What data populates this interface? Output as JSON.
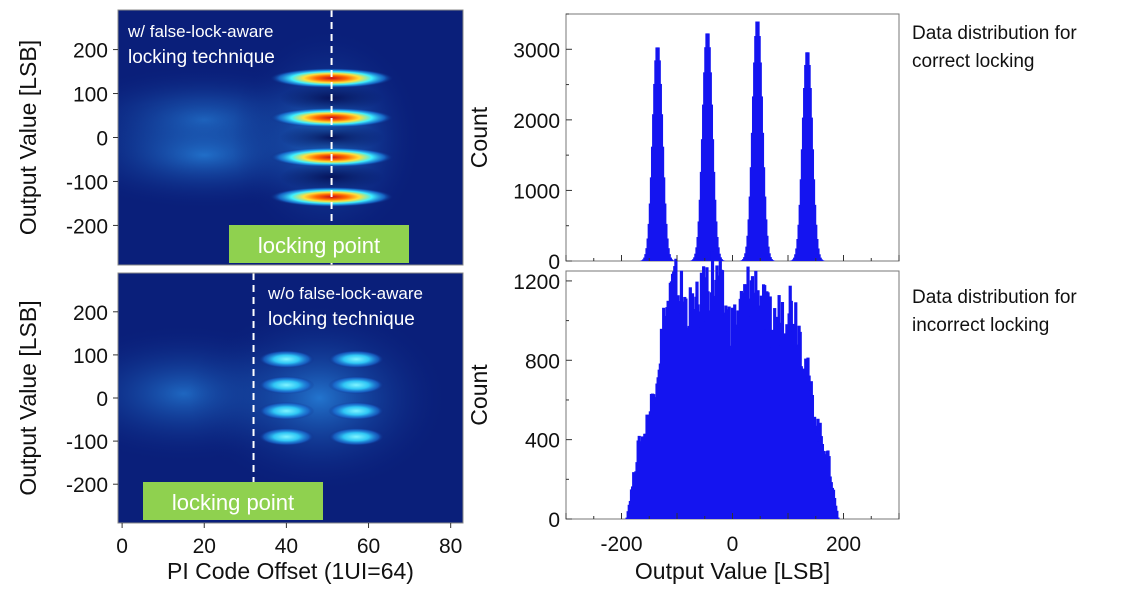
{
  "colors": {
    "heat_background": "#0a1f7a",
    "histogram_fill": "#1414f0",
    "locking_label_bg": "#8fd14f",
    "dashed_line": "#ffffff"
  },
  "annotations": {
    "top_right": "Data distribution for\ncorrect locking",
    "bottom_right": "Data distribution for\nincorrect locking"
  },
  "chart_data": [
    {
      "type": "heatmap",
      "panel": "top-left",
      "ylabel": "Output Value [LSB]",
      "xlabel": "",
      "xlim": [
        -1,
        83
      ],
      "ylim": [
        -290,
        290
      ],
      "yticks": [
        200,
        100,
        0,
        -100,
        -200
      ],
      "annotation_lines": [
        "w/ false-lock-aware",
        "locking technique"
      ],
      "locking_label": "locking point",
      "locking_point_x": 51,
      "eye_centers": [
        {
          "x": 51,
          "y": 135,
          "peak": "red"
        },
        {
          "x": 51,
          "y": 45,
          "peak": "red"
        },
        {
          "x": 51,
          "y": -45,
          "peak": "red"
        },
        {
          "x": 51,
          "y": -135,
          "peak": "red"
        }
      ]
    },
    {
      "type": "heatmap",
      "panel": "bottom-left",
      "ylabel": "Output Value [LSB]",
      "xlabel": "PI Code Offset (1UI=64)",
      "xlim": [
        -1,
        83
      ],
      "ylim": [
        -290,
        290
      ],
      "xticks": [
        0,
        20,
        40,
        60,
        80
      ],
      "yticks": [
        200,
        100,
        0,
        -100,
        -200
      ],
      "annotation_lines": [
        "w/o false-lock-aware",
        "locking technique"
      ],
      "locking_label": "locking point",
      "locking_point_x": 32,
      "eye_centers": [
        {
          "x": 40,
          "y": 90
        },
        {
          "x": 40,
          "y": 30
        },
        {
          "x": 40,
          "y": -30
        },
        {
          "x": 40,
          "y": -90
        },
        {
          "x": 57,
          "y": 90
        },
        {
          "x": 57,
          "y": 30
        },
        {
          "x": 57,
          "y": -30
        },
        {
          "x": 57,
          "y": -90
        }
      ]
    },
    {
      "type": "bar",
      "panel": "top-right",
      "ylabel": "Count",
      "xlabel": "",
      "xlim": [
        -300,
        300
      ],
      "ylim": [
        0,
        3500
      ],
      "yticks": [
        0,
        1000,
        2000,
        3000
      ],
      "peaks": [
        {
          "center": -135,
          "height": 3050,
          "width": 8
        },
        {
          "center": -45,
          "height": 3250,
          "width": 8
        },
        {
          "center": 45,
          "height": 3420,
          "width": 8
        },
        {
          "center": 135,
          "height": 2980,
          "width": 8
        }
      ]
    },
    {
      "type": "bar",
      "panel": "bottom-right",
      "ylabel": "Count",
      "xlabel": "Output Value [LSB]",
      "xlim": [
        -300,
        300
      ],
      "ylim": [
        0,
        1250
      ],
      "xticks": [
        -200,
        0,
        200
      ],
      "yticks": [
        0,
        400,
        800,
        1200
      ],
      "range": [
        -190,
        190
      ],
      "peaks": [
        {
          "center": -105,
          "height": 1130,
          "width": 28
        },
        {
          "center": -35,
          "height": 1150,
          "width": 26
        },
        {
          "center": 35,
          "height": 1110,
          "width": 26
        },
        {
          "center": 105,
          "height": 1060,
          "width": 28
        }
      ],
      "floor": 300
    }
  ]
}
